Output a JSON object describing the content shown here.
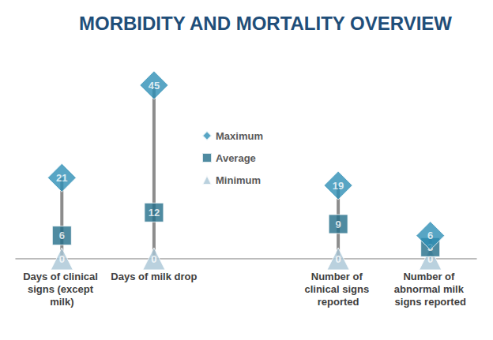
{
  "chart_data": {
    "type": "scatter",
    "title": "MORBIDITY AND MORTALITY OVERVIEW",
    "categories": [
      "Days of clinical signs (except milk)",
      "Days of milk drop",
      null,
      "Number of clinical signs reported",
      "Number of abnormal milk signs reported"
    ],
    "series": [
      {
        "name": "Maximum",
        "color": "#2e8fb5",
        "marker": "diamond",
        "values": [
          21,
          45,
          null,
          19,
          6
        ]
      },
      {
        "name": "Average",
        "color": "#236e8a",
        "marker": "rect",
        "values": [
          6,
          12,
          null,
          9,
          3
        ]
      },
      {
        "name": "Minimum",
        "color": "#a9c6d6",
        "marker": "triangle",
        "values": [
          0,
          0,
          null,
          0,
          0
        ]
      }
    ],
    "ylim": [
      0,
      45
    ],
    "grid": false,
    "legend": "center",
    "data_labels": true,
    "tick_labels": "x"
  }
}
